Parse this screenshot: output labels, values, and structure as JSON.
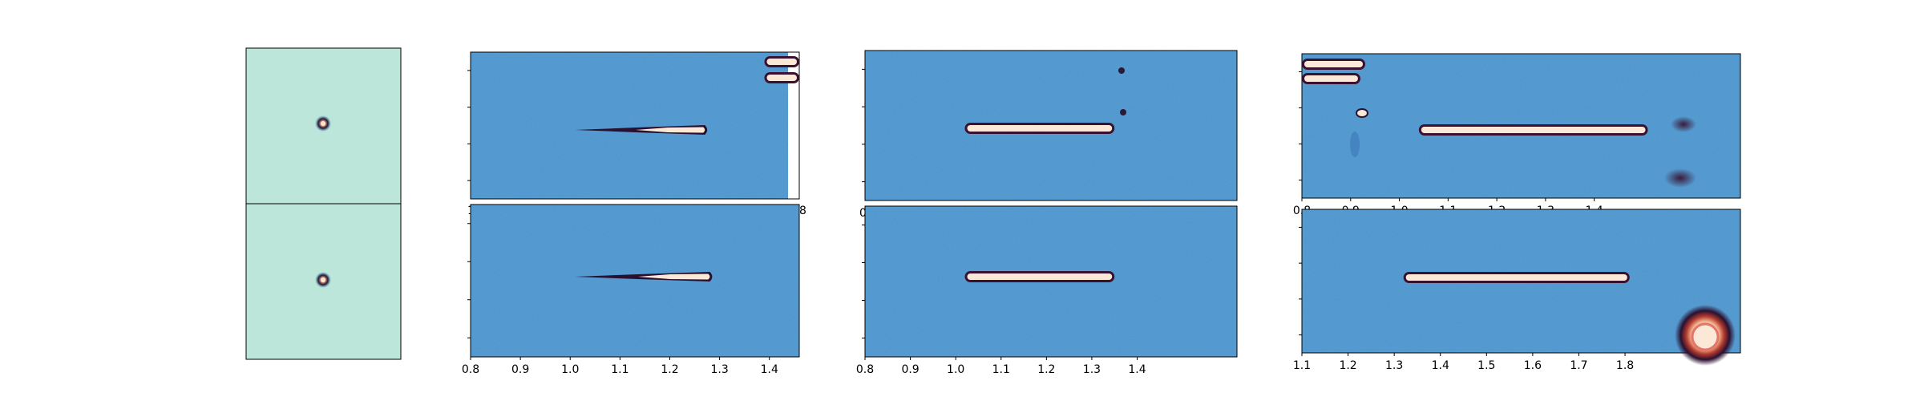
{
  "chart_data": {
    "type": "heatmap",
    "grid": "none",
    "colormap": [
      "#0b1a33",
      "#2a1030",
      "#7a1d25",
      "#e58a64",
      "#fbe8d7"
    ],
    "background_colors": {
      "psf_panel": "#bde6da",
      "spectrum_panel": "#4a94cd"
    },
    "panels": [
      {
        "id": "psf-top",
        "kind": "psf",
        "content": "point source at center"
      },
      {
        "id": "psf-bottom",
        "kind": "psf",
        "content": "point source at center"
      },
      {
        "id": "spec-col2-top",
        "kind": "spectrum",
        "xlim": [
          0.8,
          1.46
        ],
        "x_tick_labels": [
          "1",
          "8"
        ],
        "traces": [
          {
            "x_start": 1.01,
            "x_end": 1.28,
            "tapered": true
          },
          {
            "x_start": 1.39,
            "x_end": 1.46,
            "tapered": false
          },
          {
            "x_start": 1.39,
            "x_end": 1.46,
            "tapered": false
          }
        ]
      },
      {
        "id": "spec-col2-bottom",
        "kind": "spectrum",
        "xlim": [
          0.8,
          1.46
        ],
        "x_ticks": [
          0.8,
          0.9,
          1.0,
          1.1,
          1.2,
          1.3,
          1.4
        ],
        "x_tick_labels": [
          "0.8",
          "0.9",
          "1.0",
          "1.1",
          "1.2",
          "1.3",
          "1.4"
        ],
        "traces": [
          {
            "x_start": 1.01,
            "x_end": 1.29,
            "tapered": true
          }
        ]
      },
      {
        "id": "spec-col3-top",
        "kind": "spectrum",
        "xlim": [
          0.8,
          1.62
        ],
        "x_tick_labels": [
          "0"
        ],
        "traces": [
          {
            "x_start": 1.02,
            "x_end": 1.35,
            "tapered": false
          }
        ]
      },
      {
        "id": "spec-col3-bottom",
        "kind": "spectrum",
        "xlim": [
          0.8,
          1.62
        ],
        "x_ticks": [
          0.8,
          0.9,
          1.0,
          1.1,
          1.2,
          1.3,
          1.4
        ],
        "x_tick_labels": [
          "0.8",
          "0.9",
          "1.0",
          "1.1",
          "1.2",
          "1.3",
          "1.4"
        ],
        "traces": [
          {
            "x_start": 1.02,
            "x_end": 1.35,
            "tapered": false
          }
        ]
      },
      {
        "id": "spec-col4-top",
        "kind": "spectrum",
        "xlim": [
          0.8,
          1.7
        ],
        "x_ticks": [
          0.8,
          0.9,
          1.0,
          1.1,
          1.2,
          1.3,
          1.4
        ],
        "x_tick_labels": [
          "0.8",
          "0.9",
          "1.0",
          "1.1",
          "1.2",
          "1.3",
          "1.4"
        ],
        "traces": [
          {
            "x_start": 1.04,
            "x_end": 1.51,
            "tapered": false
          },
          {
            "x_start": 0.8,
            "x_end": 0.93,
            "tapered": false
          },
          {
            "x_start": 0.8,
            "x_end": 0.92,
            "tapered": false
          }
        ]
      },
      {
        "id": "spec-col4-bottom",
        "kind": "spectrum",
        "xlim": [
          1.1,
          2.05
        ],
        "x_ticks": [
          1.1,
          1.2,
          1.3,
          1.4,
          1.5,
          1.6,
          1.7,
          1.8
        ],
        "x_tick_labels": [
          "1.1",
          "1.2",
          "1.3",
          "1.4",
          "1.5",
          "1.6",
          "1.7",
          "1.8"
        ],
        "traces": [
          {
            "x_start": 1.32,
            "x_end": 1.81,
            "tapered": false
          }
        ]
      }
    ]
  }
}
